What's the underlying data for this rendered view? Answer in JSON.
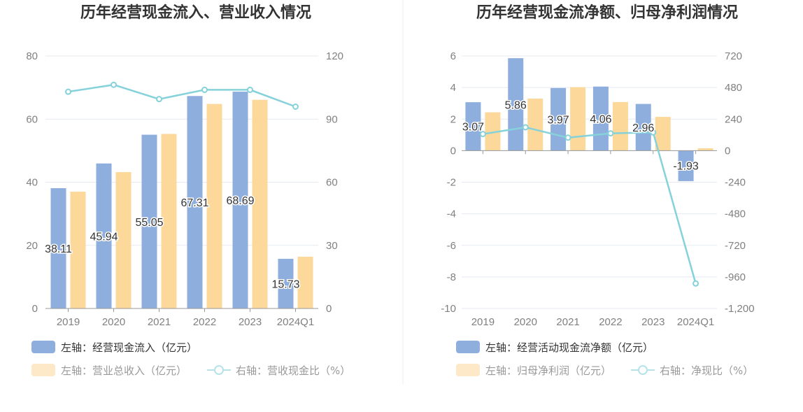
{
  "colors": {
    "bar_blue": "#8eaedd",
    "bar_orange": "#fdd89b",
    "line": "#85d2da",
    "grid": "#e5e9f2",
    "axis": "#999999",
    "legend_active": "#333333",
    "legend_inactive": "#999999"
  },
  "chart_data": [
    {
      "type": "bar",
      "title": "历年经营现金流入、营业收入情况",
      "categories": [
        "2019",
        "2020",
        "2021",
        "2022",
        "2023",
        "2024Q1"
      ],
      "left_axis": {
        "ylim": [
          0,
          80
        ],
        "ticks": [
          "0",
          "20",
          "40",
          "60",
          "80"
        ]
      },
      "right_axis": {
        "ylim": [
          0,
          120
        ],
        "ticks": [
          "0",
          "30",
          "60",
          "90",
          "120"
        ]
      },
      "series": [
        {
          "name": "左轴：经营现金流入（亿元）",
          "type": "bar",
          "axis": "left",
          "color": "#8eaedd",
          "values": [
            38.11,
            45.94,
            55.05,
            67.31,
            68.69,
            15.73
          ],
          "labels": [
            "38.11",
            "45.94",
            "55.05",
            "67.31",
            "68.69",
            "15.73"
          ]
        },
        {
          "name": "左轴：营业总收入（亿元）",
          "type": "bar",
          "axis": "left",
          "color": "#fdd89b",
          "values": [
            37.0,
            43.2,
            55.3,
            64.8,
            66.1,
            16.4
          ]
        },
        {
          "name": "右轴：营收现金比（%）",
          "type": "line",
          "axis": "right",
          "color": "#85d2da",
          "values": [
            103.0,
            106.3,
            99.5,
            103.9,
            103.9,
            95.9
          ]
        }
      ],
      "legend": {
        "placement": "bottom-left"
      }
    },
    {
      "type": "bar",
      "title": "历年经营现金流净额、归母净利润情况",
      "categories": [
        "2019",
        "2020",
        "2021",
        "2022",
        "2023",
        "2024Q1"
      ],
      "left_axis": {
        "ylim": [
          -10,
          6
        ],
        "ticks": [
          "-10",
          "-8",
          "-6",
          "-4",
          "-2",
          "0",
          "2",
          "4",
          "6"
        ]
      },
      "right_axis": {
        "ylim": [
          -1200,
          720
        ],
        "ticks": [
          "-1,200",
          "-960",
          "-720",
          "-480",
          "-240",
          "0",
          "240",
          "480",
          "720"
        ]
      },
      "series": [
        {
          "name": "左轴：经营活动现金流净额（亿元）",
          "type": "bar",
          "axis": "left",
          "color": "#8eaedd",
          "values": [
            3.07,
            5.86,
            3.97,
            4.06,
            2.96,
            -1.93
          ],
          "labels": [
            "3.07",
            "5.86",
            "3.97",
            "4.06",
            "2.96",
            "-1.93"
          ]
        },
        {
          "name": "左轴：归母净利润（亿元）",
          "type": "bar",
          "axis": "left",
          "color": "#fdd89b",
          "values": [
            2.43,
            3.3,
            4.02,
            3.08,
            2.14,
            0.15
          ]
        },
        {
          "name": "右轴：净现比（%）",
          "type": "line",
          "axis": "right",
          "color": "#85d2da",
          "values": [
            126.3,
            177.6,
            98.8,
            131.8,
            138.3,
            -1010.0
          ]
        }
      ],
      "legend": {
        "placement": "bottom-left"
      }
    }
  ]
}
